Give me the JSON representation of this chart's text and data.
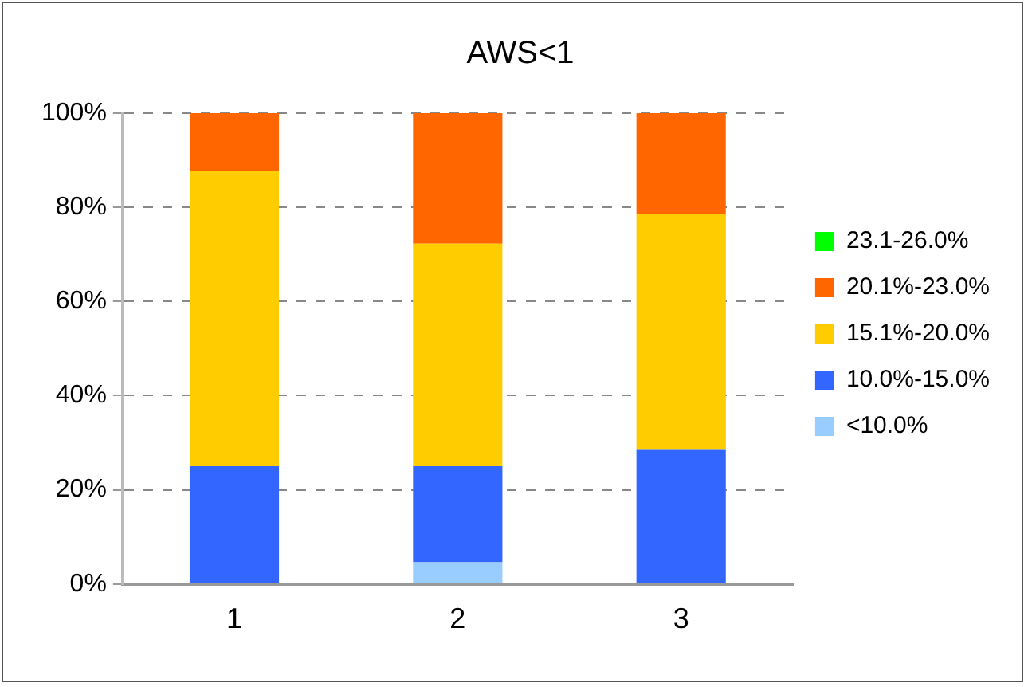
{
  "chart_data": {
    "type": "bar",
    "title": "AWS<1",
    "categories": [
      "1",
      "2",
      "3"
    ],
    "stacked": true,
    "series": [
      {
        "name": "<10.0%",
        "color": "#99ccff",
        "values": [
          0,
          4.6,
          0
        ]
      },
      {
        "name": "10.0%-15.0%",
        "color": "#3366ff",
        "values": [
          25,
          20.4,
          28.5
        ]
      },
      {
        "name": "15.1%-20.0%",
        "color": "#ffcc00",
        "values": [
          62.7,
          47.3,
          50
        ]
      },
      {
        "name": "20.1%-23.0%",
        "color": "#ff6600",
        "values": [
          12.3,
          27.7,
          21.5
        ]
      },
      {
        "name": "23.1-26.0%",
        "color": "#00ff00",
        "values": [
          0,
          0,
          0
        ]
      }
    ],
    "ylim": [
      0,
      100
    ],
    "yticks": [
      {
        "value": 0,
        "label": "0%"
      },
      {
        "value": 20,
        "label": "20%"
      },
      {
        "value": 40,
        "label": "40%"
      },
      {
        "value": 60,
        "label": "60%"
      },
      {
        "value": 80,
        "label": "80%"
      },
      {
        "value": 100,
        "label": "100%"
      }
    ],
    "grid": "y",
    "legend": "right"
  }
}
